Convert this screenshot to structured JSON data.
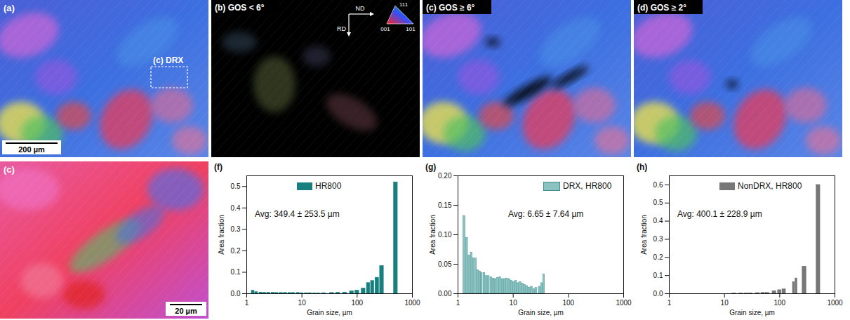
{
  "maps": [
    {
      "label": "(a)",
      "annotation": "(c) DRX",
      "scale_bar": "200 µm"
    },
    {
      "label": "(b) GOS < 6°",
      "axes": [
        "ND",
        "RD"
      ],
      "key": [
        "111",
        "001",
        "101"
      ]
    },
    {
      "label": "(c) GOS ≥ 6°"
    },
    {
      "label": "(d) GOS ≥ 2°"
    },
    {
      "label": "(c)",
      "scale_bar": "20 µm"
    }
  ],
  "chart_data": [
    {
      "type": "bar",
      "title": "(f)",
      "annotations": [
        "Avg: 349.4 ± 253.5 µm"
      ],
      "x_label": "Grain size, µm",
      "y_label": "Area fraction",
      "log": "x",
      "legend": "top-right",
      "x": [
        1.3,
        1.5,
        1.8,
        2.1,
        2.5,
        3,
        3.5,
        4.2,
        5,
        6,
        7,
        8.5,
        10,
        12,
        14,
        17,
        20,
        25,
        35,
        45,
        60,
        80,
        100,
        130,
        160,
        190,
        230,
        280,
        500
      ],
      "series": [
        {
          "name": "HR800",
          "color": "#17807e",
          "values": [
            0.015,
            0.008,
            0.006,
            0.005,
            0.005,
            0.005,
            0.004,
            0.004,
            0.004,
            0.004,
            0.004,
            0.004,
            0.003,
            0.003,
            0.003,
            0.002,
            0.002,
            0.003,
            0.004,
            0.005,
            0.006,
            0.012,
            0.015,
            0.025,
            0.05,
            0.06,
            0.075,
            0.13,
            0.52
          ]
        }
      ],
      "xlim": [
        1,
        1000
      ],
      "xticks": [
        1,
        10,
        100,
        1000
      ],
      "ylim": [
        0,
        0.55
      ],
      "yticks": [
        {
          "value": 0,
          "label": "0.0"
        },
        0.1,
        0.2,
        0.3,
        0.4,
        0.5
      ]
    },
    {
      "type": "bar",
      "title": "(g)",
      "annotations": [
        "Avg: 6.65 ± 7.64 µm"
      ],
      "x_label": "Grain size, µm",
      "y_label": "Area fraction",
      "log": "x",
      "legend": "top-right",
      "x": [
        1.3,
        1.45,
        1.6,
        1.75,
        1.9,
        2.1,
        2.3,
        2.5,
        2.7,
        3.0,
        3.3,
        3.6,
        4.0,
        4.4,
        4.8,
        5.3,
        5.8,
        6.4,
        7,
        7.7,
        8.5,
        9.3,
        10.2,
        11.2,
        12.3,
        13.5,
        14.8,
        16.3,
        18,
        19.7,
        21.6,
        23.8,
        26,
        30,
        33,
        36
      ],
      "series": [
        {
          "name": "DRX, HR800",
          "color": "#8cc3c2",
          "values": [
            0.132,
            0.095,
            0.065,
            0.07,
            0.06,
            0.06,
            0.04,
            0.038,
            0.035,
            0.035,
            0.03,
            0.03,
            0.028,
            0.026,
            0.025,
            0.027,
            0.028,
            0.025,
            0.025,
            0.026,
            0.025,
            0.022,
            0.02,
            0.022,
            0.018,
            0.02,
            0.017,
            0.015,
            0.013,
            0.01,
            0.012,
            0.008,
            0.01,
            0.012,
            0.018,
            0.033
          ]
        }
      ],
      "xlim": [
        1,
        1000
      ],
      "xticks": [
        1,
        10,
        100,
        1000
      ],
      "ylim": [
        0,
        0.2
      ],
      "yticks": [
        {
          "value": 0,
          "label": "0.00"
        },
        0.05,
        {
          "value": 0.1,
          "label": "0.10"
        },
        0.15,
        {
          "value": 0.2,
          "label": "0.20"
        }
      ]
    },
    {
      "type": "bar",
      "title": "(h)",
      "annotations": [
        "Avg: 400.1 ± 228.9 µm"
      ],
      "x_label": "Grain size, µm",
      "y_label": "Area fraction",
      "log": "x",
      "legend": "top-right",
      "x": [
        15,
        20,
        25,
        30,
        40,
        50,
        60,
        80,
        100,
        120,
        180,
        200,
        280,
        500
      ],
      "series": [
        {
          "name": "NonDRX, HR800",
          "color": "#777777",
          "values": [
            0.002,
            0.002,
            0.002,
            0.003,
            0.004,
            0.005,
            0.005,
            0.015,
            0.02,
            0.025,
            0.065,
            0.085,
            0.15,
            0.6
          ]
        }
      ],
      "xlim": [
        1,
        1000
      ],
      "xticks": [
        1,
        10,
        100,
        1000
      ],
      "ylim": [
        0,
        0.65
      ],
      "yticks": [
        {
          "value": 0,
          "label": "0.0"
        },
        0.1,
        0.2,
        0.3,
        0.4,
        0.5,
        0.6
      ]
    }
  ]
}
